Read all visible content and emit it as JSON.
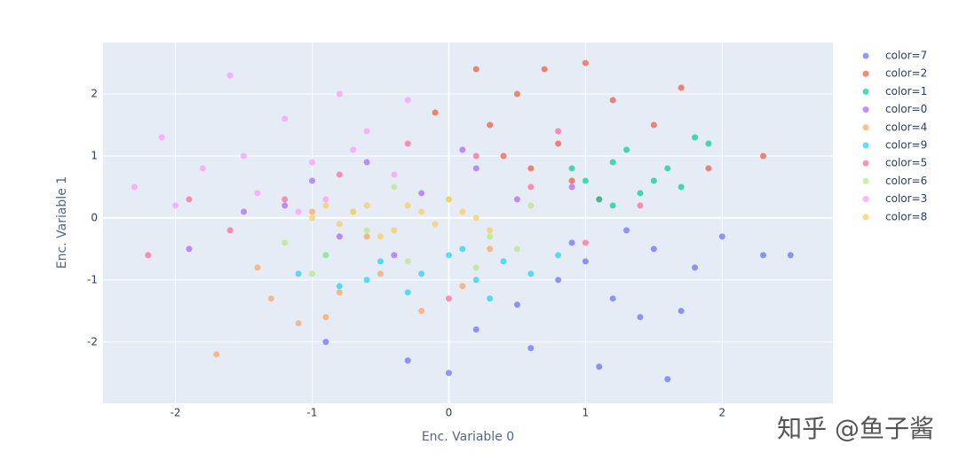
{
  "chart_data": {
    "type": "scatter",
    "x_label": "Enc. Variable 0",
    "y_label": "Enc. Variable 1",
    "xlim": [
      -2.53,
      2.81
    ],
    "ylim": [
      -2.99,
      2.83
    ],
    "xticks": [
      -2,
      -1,
      0,
      1,
      2
    ],
    "yticks": [
      -2,
      -1,
      0,
      1,
      2
    ],
    "grid": true,
    "legend": "right",
    "series": [
      {
        "name": "color=7",
        "color": "#636efa",
        "x": [
          0.2,
          0.5,
          0.8,
          1.0,
          1.2,
          1.5,
          1.8,
          2.0,
          2.3,
          0.6,
          1.1,
          1.4,
          0.0,
          -0.3,
          1.7,
          0.9,
          1.3,
          2.5,
          -0.9,
          1.6
        ],
        "y": [
          -1.8,
          -1.4,
          -1.0,
          -0.7,
          -1.3,
          -0.5,
          -0.8,
          -0.3,
          -0.6,
          -2.1,
          -2.4,
          -1.6,
          -2.5,
          -2.3,
          -1.5,
          -0.4,
          -0.2,
          -0.6,
          -2.0,
          -2.6
        ]
      },
      {
        "name": "color=2",
        "color": "#EF553B",
        "x": [
          0.3,
          0.5,
          0.8,
          1.0,
          1.2,
          0.6,
          0.9,
          1.5,
          1.9,
          2.3,
          0.2,
          0.7,
          1.1,
          -0.1,
          0.4,
          1.7
        ],
        "y": [
          1.5,
          2.0,
          1.2,
          2.5,
          1.9,
          0.8,
          0.6,
          1.5,
          0.8,
          1.0,
          2.4,
          2.4,
          0.3,
          1.7,
          1.0,
          2.1
        ]
      },
      {
        "name": "color=1",
        "color": "#00cc96",
        "x": [
          1.0,
          1.2,
          1.4,
          1.6,
          1.8,
          1.1,
          1.3,
          1.5,
          0.9,
          1.7,
          1.2,
          1.9
        ],
        "y": [
          0.6,
          0.9,
          0.4,
          0.8,
          1.3,
          0.3,
          1.1,
          0.6,
          0.8,
          0.5,
          0.2,
          1.2
        ]
      },
      {
        "name": "color=0",
        "color": "#ab63fa",
        "x": [
          -1.9,
          -1.5,
          -1.0,
          -0.6,
          -0.2,
          0.2,
          0.5,
          0.9,
          -0.8,
          -1.2,
          0.1,
          -0.4
        ],
        "y": [
          -0.5,
          0.1,
          0.6,
          0.9,
          0.4,
          0.8,
          0.3,
          0.5,
          -0.3,
          0.2,
          1.1,
          -0.6
        ]
      },
      {
        "name": "color=4",
        "color": "#FFA15A",
        "x": [
          -1.7,
          -1.3,
          -1.1,
          -0.8,
          -0.5,
          -0.2,
          0.1,
          -1.4,
          -0.9,
          -0.6,
          0.3,
          -1.0
        ],
        "y": [
          -2.2,
          -1.3,
          -1.7,
          -1.2,
          -0.9,
          -1.5,
          -1.1,
          -0.8,
          -1.6,
          -0.3,
          -0.5,
          0.1
        ]
      },
      {
        "name": "color=9",
        "color": "#19d3f3",
        "x": [
          -1.1,
          -0.8,
          -0.5,
          -0.2,
          0.0,
          0.2,
          0.4,
          0.6,
          -0.3,
          0.1,
          -0.6,
          0.8,
          0.3,
          -0.9
        ],
        "y": [
          -0.9,
          -1.1,
          -0.7,
          -0.9,
          -0.6,
          -1.0,
          -0.7,
          -0.9,
          -1.2,
          -0.5,
          -1.0,
          -0.6,
          -1.3,
          -0.6
        ]
      },
      {
        "name": "color=5",
        "color": "#FF6692",
        "x": [
          -2.2,
          -1.6,
          -1.2,
          -0.8,
          -0.3,
          0.2,
          0.6,
          1.0,
          1.4,
          -1.9,
          0.0,
          0.8
        ],
        "y": [
          -0.6,
          -0.2,
          0.3,
          0.7,
          1.2,
          1.0,
          0.5,
          -0.4,
          0.2,
          0.3,
          -1.3,
          1.4
        ]
      },
      {
        "name": "color=6",
        "color": "#B6E880",
        "x": [
          -1.2,
          -0.9,
          -0.6,
          -0.3,
          0.0,
          0.3,
          0.6,
          -0.4,
          0.2,
          -0.7,
          0.5,
          -1.0
        ],
        "y": [
          -0.4,
          -0.6,
          -0.2,
          -0.7,
          0.3,
          -0.3,
          0.2,
          0.5,
          -0.8,
          0.1,
          -0.5,
          -0.9
        ]
      },
      {
        "name": "color=3",
        "color": "#FF97FF",
        "x": [
          -2.3,
          -2.1,
          -1.8,
          -1.6,
          -1.4,
          -1.2,
          -1.0,
          -0.8,
          -0.6,
          -0.4,
          -1.5,
          -0.9,
          -0.3,
          -1.1,
          -2.0,
          -0.7
        ],
        "y": [
          0.5,
          1.3,
          0.8,
          2.3,
          0.4,
          1.6,
          0.9,
          2.0,
          1.4,
          0.7,
          1.0,
          0.3,
          1.9,
          0.1,
          0.2,
          1.1
        ]
      },
      {
        "name": "color=8",
        "color": "#FECB52",
        "x": [
          -1.0,
          -0.8,
          -0.6,
          -0.4,
          -0.2,
          0.0,
          0.2,
          -0.5,
          -0.3,
          -0.1,
          0.1,
          -0.7,
          0.3,
          -0.9
        ],
        "y": [
          0.0,
          -0.1,
          0.2,
          -0.2,
          0.1,
          0.3,
          0.0,
          -0.3,
          0.2,
          -0.1,
          0.1,
          0.1,
          -0.2,
          0.2
        ]
      }
    ]
  },
  "watermark": "知乎 @鱼子酱"
}
